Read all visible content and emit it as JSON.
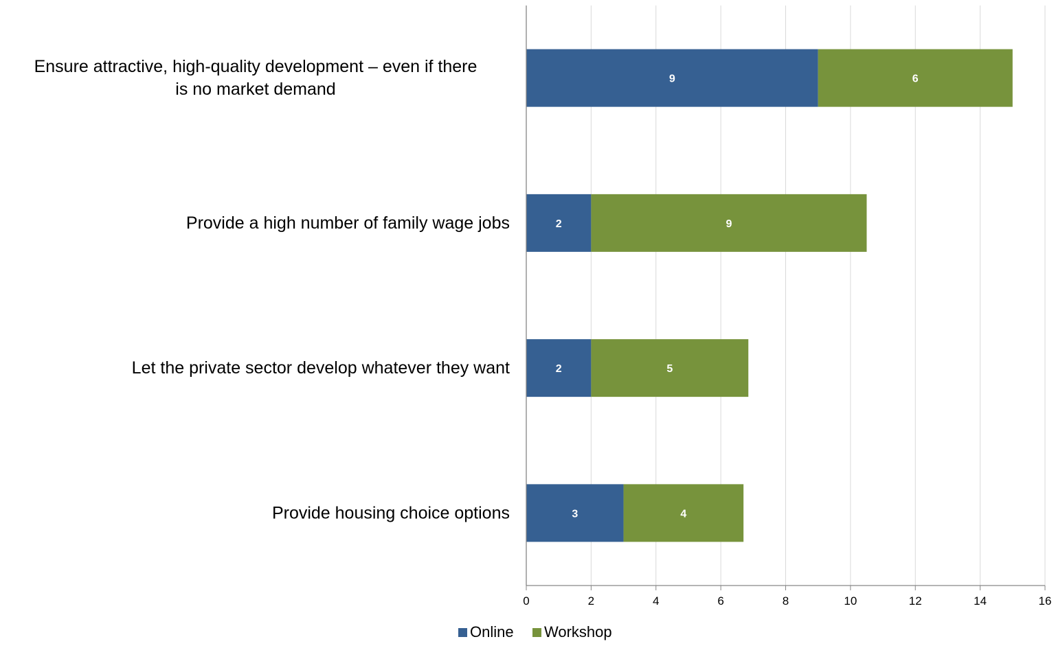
{
  "chart_data": {
    "type": "bar",
    "orientation": "horizontal",
    "stacked": true,
    "categories": [
      [
        "Ensure attractive, high-quality development – even if there",
        "is no market demand"
      ],
      [
        "Provide a high number of family wage jobs"
      ],
      [
        "Let the private sector develop whatever they want"
      ],
      [
        "Provide housing choice options"
      ]
    ],
    "series": [
      {
        "name": "Online",
        "color": "#366092",
        "values": [
          9,
          2,
          2,
          3
        ],
        "labels": [
          "9",
          "2",
          "2",
          "3"
        ]
      },
      {
        "name": "Workshop",
        "color": "#77933C",
        "values": [
          6,
          8.5,
          4.85,
          3.7
        ],
        "labels": [
          "6",
          "9",
          "5",
          "4"
        ]
      }
    ],
    "xlim": [
      0,
      16
    ],
    "x_ticks": [
      "0",
      "2",
      "4",
      "6",
      "8",
      "10",
      "12",
      "14",
      "16"
    ],
    "grid": true,
    "legend_position": "bottom",
    "title": "",
    "xlabel": "",
    "ylabel": ""
  }
}
